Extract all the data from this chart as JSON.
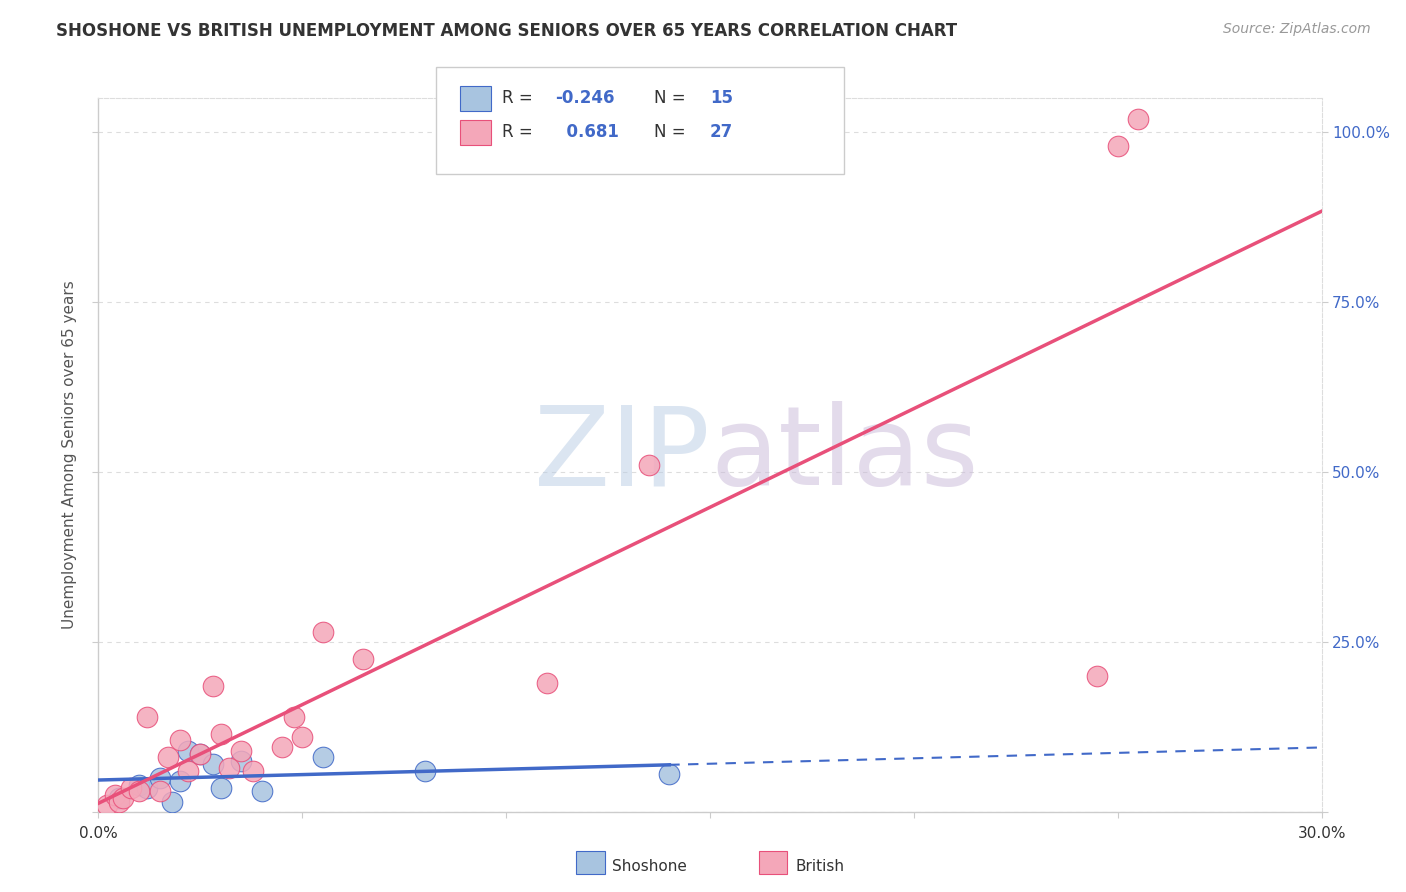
{
  "title": "SHOSHONE VS BRITISH UNEMPLOYMENT AMONG SENIORS OVER 65 YEARS CORRELATION CHART",
  "source": "Source: ZipAtlas.com",
  "ylabel": "Unemployment Among Seniors over 65 years",
  "xlim": [
    0.0,
    30.0
  ],
  "ylim": [
    0.0,
    105.0
  ],
  "shoshone_color": "#a8c4e0",
  "british_color": "#f4a7b9",
  "shoshone_line_color": "#4169c8",
  "british_line_color": "#e8507a",
  "shoshone_R": -0.246,
  "shoshone_N": 15,
  "british_R": 0.681,
  "british_N": 27,
  "watermark_zip": "ZIP",
  "watermark_atlas": "atlas",
  "shoshone_x": [
    0.5,
    1.0,
    1.2,
    1.5,
    1.8,
    2.0,
    2.2,
    2.5,
    2.8,
    3.0,
    3.5,
    4.0,
    5.5,
    8.0,
    14.0
  ],
  "shoshone_y": [
    2.0,
    4.0,
    3.5,
    5.0,
    1.5,
    4.5,
    9.0,
    8.5,
    7.0,
    3.5,
    7.5,
    3.0,
    8.0,
    6.0,
    5.5
  ],
  "british_x": [
    0.2,
    0.4,
    0.5,
    0.6,
    0.8,
    1.0,
    1.2,
    1.5,
    1.7,
    2.0,
    2.2,
    2.5,
    2.8,
    3.0,
    3.2,
    3.5,
    3.8,
    4.5,
    4.8,
    5.0,
    5.5,
    6.5,
    11.0,
    13.5,
    24.5,
    25.0,
    25.5
  ],
  "british_y": [
    1.0,
    2.5,
    1.5,
    2.0,
    3.5,
    3.0,
    14.0,
    3.0,
    8.0,
    10.5,
    6.0,
    8.5,
    18.5,
    11.5,
    6.5,
    9.0,
    6.0,
    9.5,
    14.0,
    11.0,
    26.5,
    22.5,
    19.0,
    51.0,
    20.0,
    98.0,
    102.0
  ],
  "legend_shoshone_label": "Shoshone",
  "legend_british_label": "British",
  "grid_color": "#dddddd",
  "background_color": "#ffffff",
  "right_ytick_color": "#4169c8",
  "title_fontsize": 12,
  "source_fontsize": 10,
  "ylabel_fontsize": 11,
  "tick_fontsize": 11,
  "legend_fontsize": 12
}
